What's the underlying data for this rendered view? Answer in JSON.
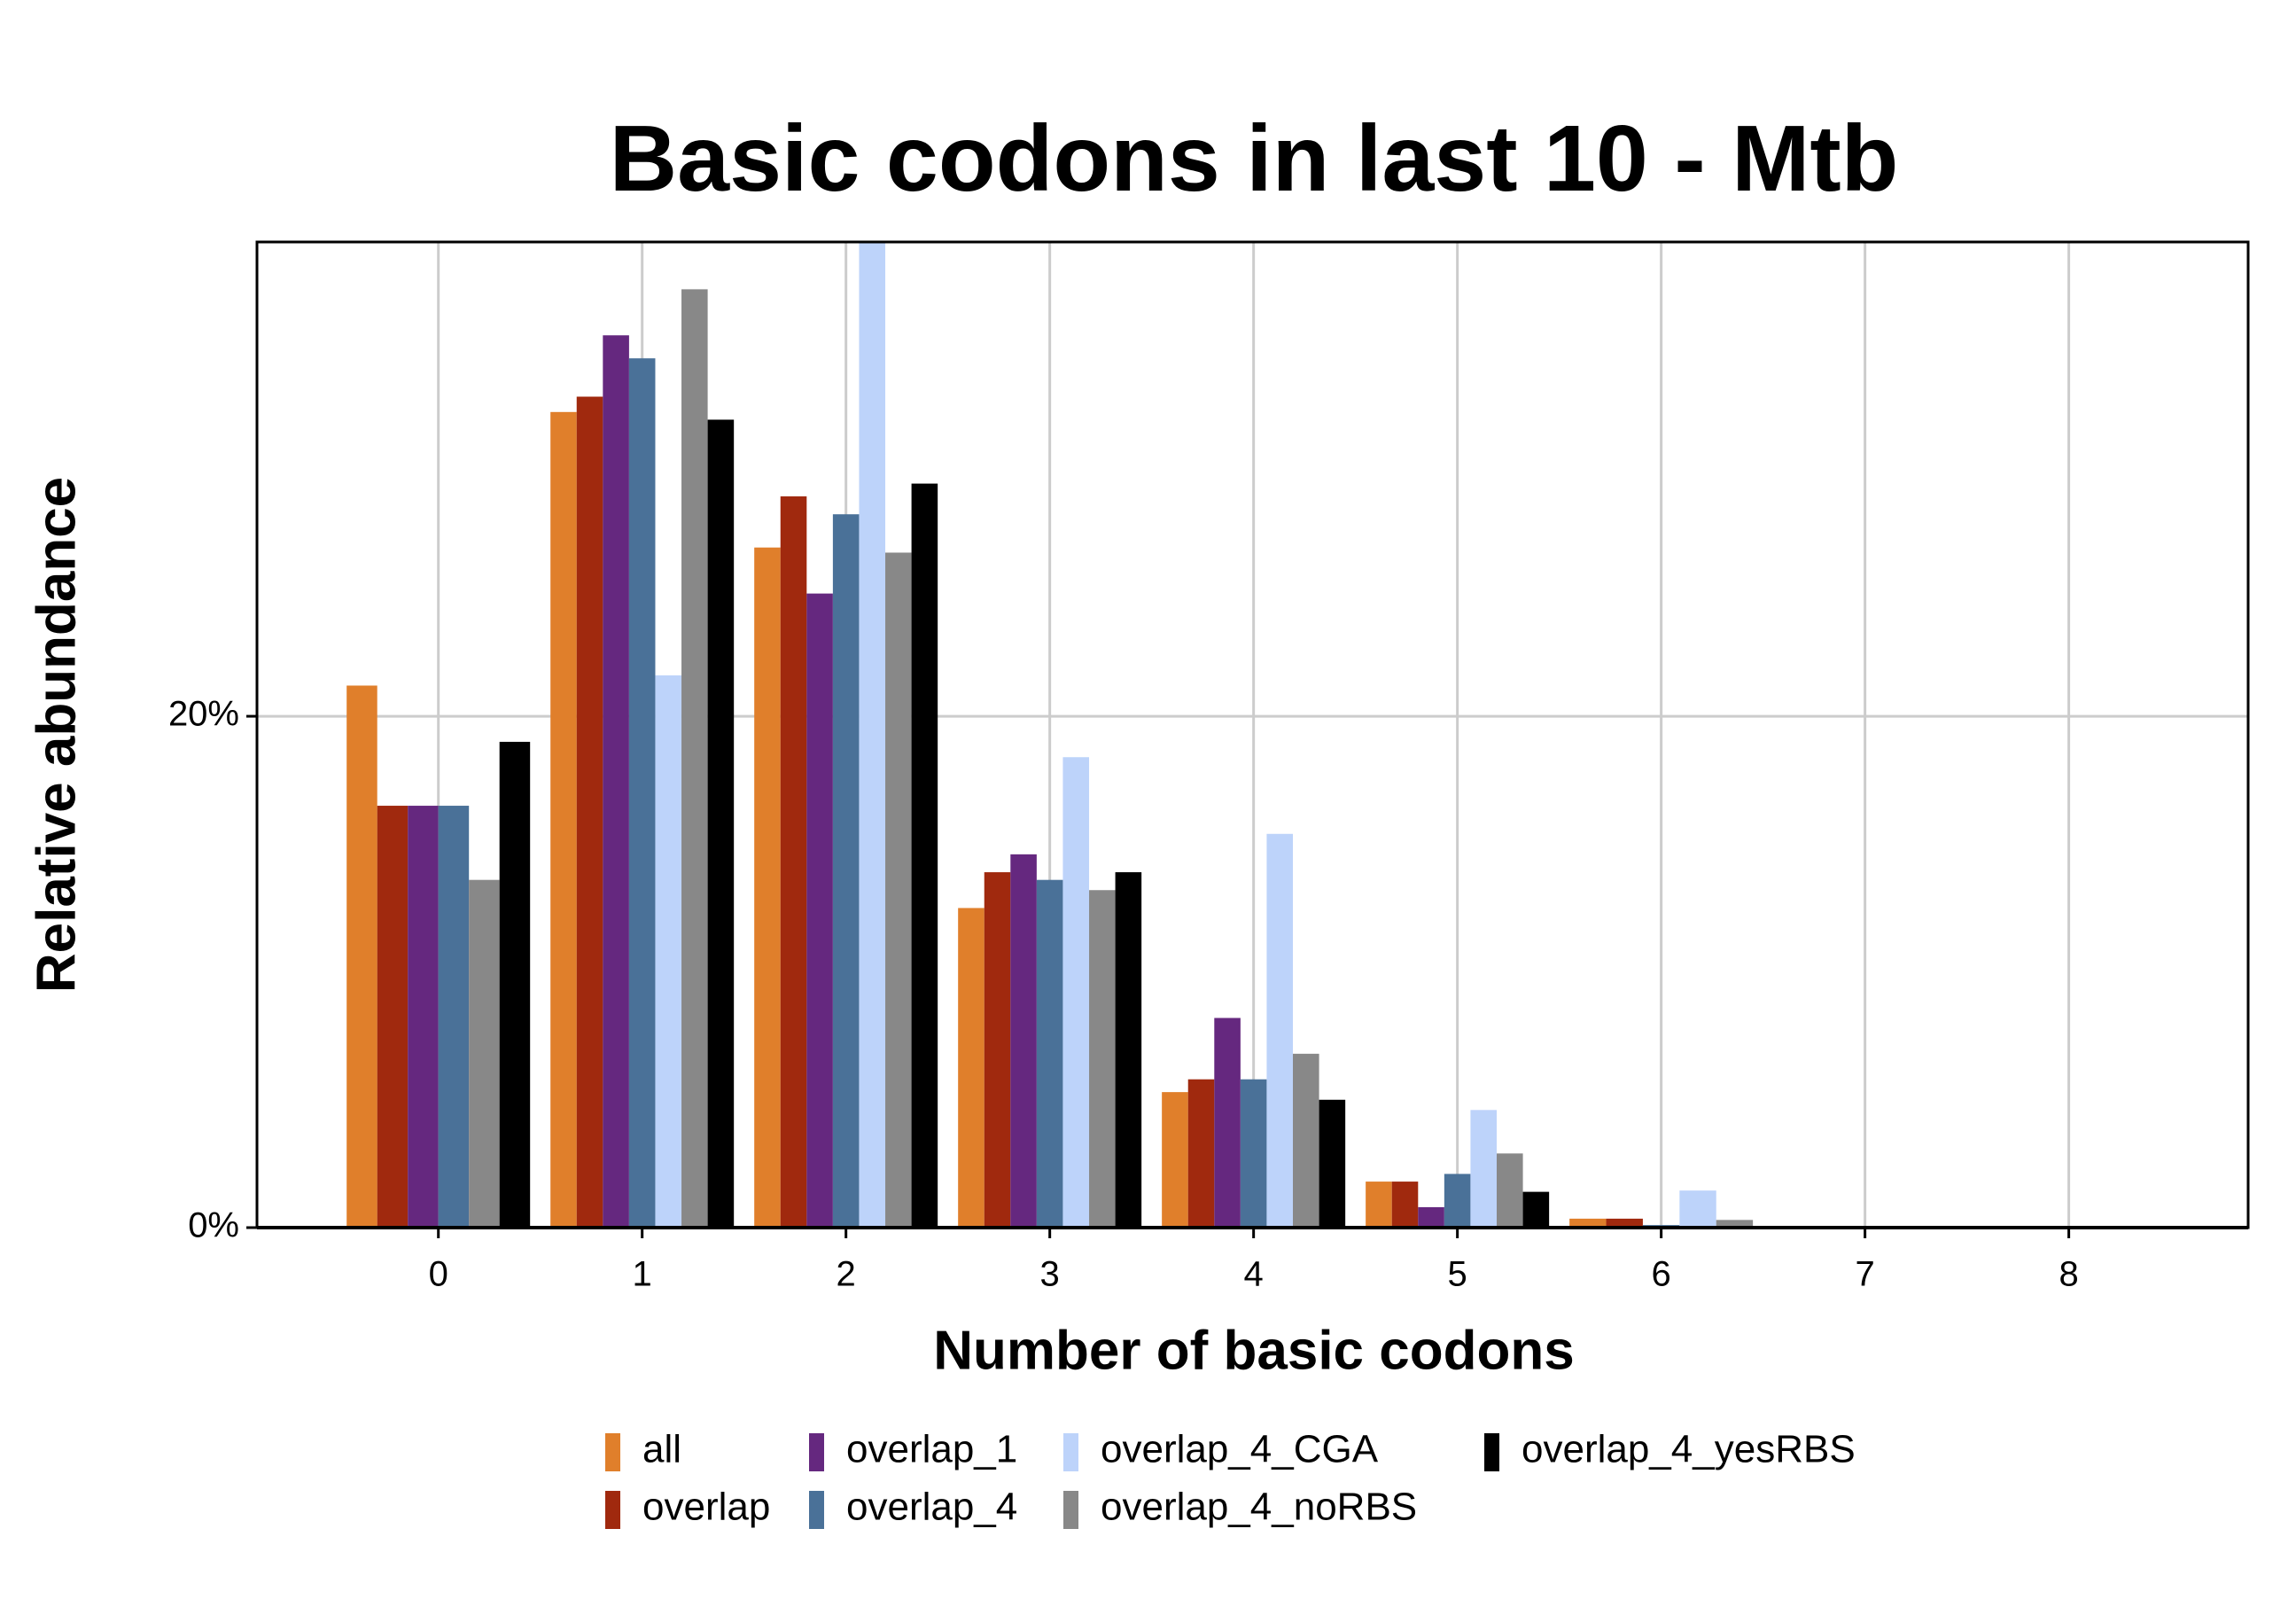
{
  "chart_data": {
    "type": "bar",
    "title": "Basic codons in last 10 - Mtb",
    "x_label": "Number of basic codons",
    "y_label": "Relative abundance",
    "x": [
      0,
      1,
      2,
      3,
      4,
      5,
      6,
      7,
      8
    ],
    "xlim": [
      -0.89,
      8.88
    ],
    "xticks": [
      0,
      1,
      2,
      3,
      4,
      5,
      6,
      7,
      8
    ],
    "ylim": [
      0,
      38.55
    ],
    "yticks": [
      {
        "value": 0,
        "label": "0%"
      },
      {
        "value": 20,
        "label": "20%"
      }
    ],
    "grid": true,
    "series": [
      {
        "name": "all",
        "color": "#E07F2B",
        "values": [
          21.2,
          31.9,
          26.6,
          12.5,
          5.3,
          1.8,
          0.35,
          null,
          null
        ]
      },
      {
        "name": "overlap",
        "color": "#A0290E",
        "values": [
          16.5,
          32.5,
          28.6,
          13.9,
          5.8,
          1.8,
          0.35,
          null,
          0.05
        ]
      },
      {
        "name": "overlap_1",
        "color": "#65287F",
        "values": [
          16.5,
          34.9,
          24.8,
          14.6,
          8.2,
          0.8,
          null,
          null,
          null
        ]
      },
      {
        "name": "overlap_4",
        "color": "#4A7198",
        "values": [
          16.5,
          34.0,
          27.9,
          13.6,
          5.8,
          2.1,
          0.1,
          null,
          null
        ]
      },
      {
        "name": "overlap_4_CGA",
        "color": "#BDD3FA",
        "values": [
          null,
          21.6,
          40,
          18.4,
          15.4,
          4.6,
          1.45,
          null,
          null
        ]
      },
      {
        "name": "overlap_4_noRBS",
        "color": "#888888",
        "values": [
          13.6,
          36.7,
          26.4,
          13.2,
          6.8,
          2.9,
          0.3,
          null,
          null
        ]
      },
      {
        "name": "overlap_4_yesRBS",
        "color": "#000000",
        "values": [
          19.0,
          31.6,
          29.1,
          13.9,
          5.0,
          1.4,
          null,
          null,
          null
        ]
      }
    ]
  }
}
